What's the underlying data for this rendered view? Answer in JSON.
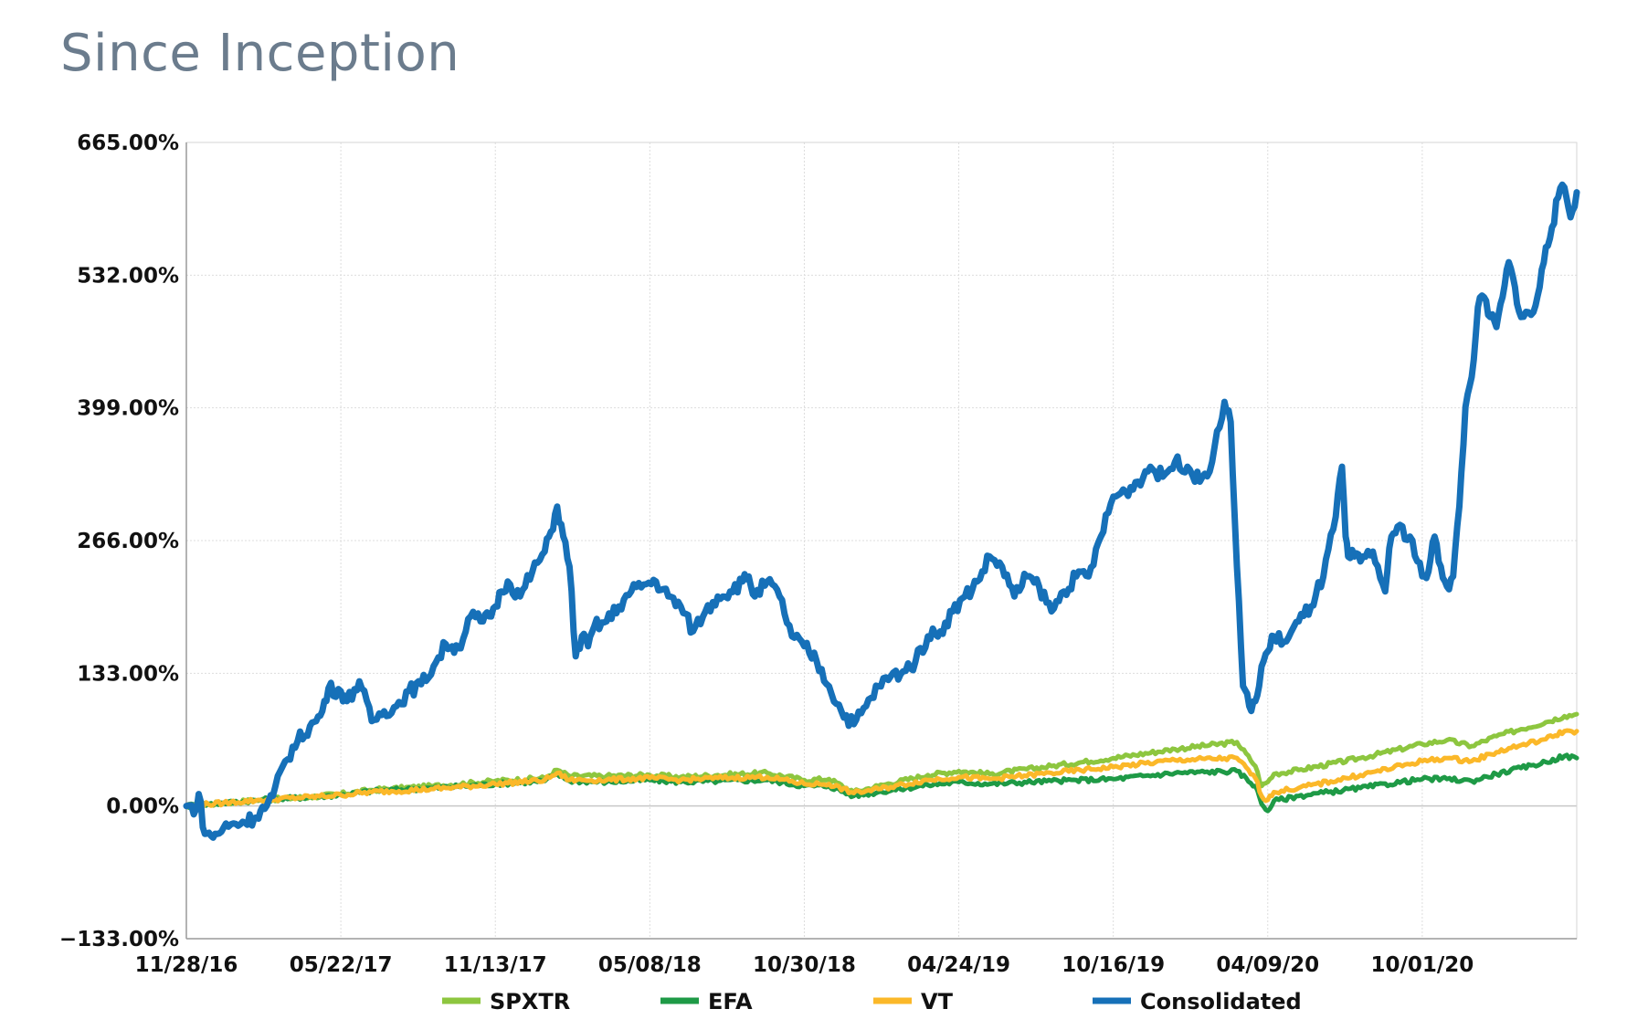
{
  "page": {
    "title": "Since Inception"
  },
  "chart_data": {
    "type": "line",
    "title": "Since Inception",
    "xlabel": "",
    "ylabel": "",
    "ylim": [
      -133,
      665
    ],
    "yticks": [
      -133,
      0,
      133,
      266,
      399,
      532,
      665
    ],
    "ytick_labels": [
      "−133.00%",
      "0.00%",
      "133.00%",
      "266.00%",
      "399.00%",
      "532.00%",
      "665.00%"
    ],
    "xtick_labels": [
      "11/28/16",
      "05/22/17",
      "11/13/17",
      "05/08/18",
      "10/30/18",
      "04/24/19",
      "10/16/19",
      "04/09/20",
      "10/01/20"
    ],
    "x_domain_labels": "Trading-day index from 11/28/16 (index 0) to ~04/2021 (index 1125); ticks every 125 points",
    "xlim": [
      0,
      1125
    ],
    "xtick_positions": [
      0,
      125,
      250,
      375,
      500,
      625,
      750,
      875,
      1000
    ],
    "grid": true,
    "legend_position": "bottom",
    "series": [
      {
        "name": "SPXTR",
        "color": "#8dc63f",
        "x": [
          0,
          30,
          60,
          100,
          125,
          150,
          200,
          250,
          290,
          300,
          310,
          340,
          375,
          400,
          430,
          470,
          500,
          520,
          540,
          560,
          600,
          625,
          650,
          700,
          750,
          800,
          850,
          865,
          870,
          875,
          880,
          900,
          950,
          1000,
          1020,
          1040,
          1060,
          1080,
          1100,
          1115,
          1125
        ],
        "values": [
          0,
          3,
          6,
          9,
          12,
          16,
          20,
          25,
          28,
          36,
          30,
          30,
          31,
          29,
          31,
          33,
          26,
          27,
          14,
          20,
          31,
          35,
          32,
          40,
          48,
          57,
          64,
          40,
          20,
          24,
          32,
          36,
          48,
          62,
          66,
          60,
          70,
          77,
          84,
          90,
          92
        ]
      },
      {
        "name": "EFA",
        "color": "#1e9a46",
        "x": [
          0,
          30,
          60,
          100,
          125,
          150,
          200,
          250,
          290,
          300,
          310,
          340,
          375,
          400,
          430,
          470,
          500,
          520,
          540,
          560,
          600,
          625,
          650,
          700,
          750,
          800,
          850,
          865,
          870,
          875,
          880,
          900,
          950,
          1000,
          1020,
          1040,
          1060,
          1080,
          1100,
          1115,
          1125
        ],
        "values": [
          0,
          3,
          6,
          9,
          11,
          15,
          18,
          22,
          25,
          32,
          25,
          24,
          26,
          24,
          25,
          26,
          20,
          20,
          10,
          14,
          21,
          24,
          22,
          25,
          27,
          33,
          35,
          20,
          2,
          -5,
          5,
          10,
          18,
          27,
          27,
          25,
          32,
          38,
          44,
          50,
          48
        ]
      },
      {
        "name": "VT",
        "color": "#fbb829",
        "x": [
          0,
          30,
          60,
          100,
          125,
          150,
          200,
          250,
          290,
          300,
          310,
          340,
          375,
          400,
          430,
          470,
          500,
          520,
          540,
          560,
          600,
          625,
          650,
          700,
          750,
          800,
          850,
          865,
          870,
          875,
          880,
          900,
          950,
          1000,
          1020,
          1040,
          1060,
          1080,
          1100,
          1115,
          1125
        ],
        "values": [
          0,
          3,
          6,
          9,
          11,
          14,
          17,
          22,
          26,
          33,
          26,
          26,
          28,
          26,
          28,
          29,
          22,
          22,
          13,
          17,
          26,
          29,
          27,
          33,
          39,
          46,
          48,
          28,
          10,
          6,
          14,
          18,
          31,
          45,
          48,
          45,
          54,
          61,
          67,
          75,
          75
        ]
      },
      {
        "name": "Consolidated",
        "color": "#1670b8",
        "x": [
          0,
          8,
          10,
          15,
          20,
          25,
          30,
          40,
          55,
          60,
          65,
          70,
          80,
          90,
          100,
          105,
          110,
          115,
          125,
          130,
          140,
          150,
          160,
          170,
          180,
          190,
          200,
          210,
          215,
          220,
          230,
          240,
          245,
          250,
          255,
          260,
          270,
          280,
          290,
          295,
          300,
          305,
          310,
          315,
          320,
          325,
          330,
          340,
          350,
          360,
          370,
          380,
          390,
          400,
          410,
          420,
          430,
          440,
          450,
          455,
          460,
          470,
          480,
          490,
          500,
          510,
          520,
          530,
          540,
          550,
          560,
          570,
          580,
          590,
          600,
          610,
          620,
          630,
          640,
          650,
          660,
          670,
          680,
          690,
          700,
          710,
          720,
          730,
          740,
          750,
          760,
          770,
          780,
          790,
          800,
          810,
          820,
          830,
          840,
          845,
          850,
          855,
          860,
          865,
          868,
          870,
          875,
          880,
          890,
          900,
          910,
          920,
          930,
          935,
          938,
          940,
          945,
          950,
          960,
          970,
          975,
          980,
          990,
          1000,
          1005,
          1010,
          1015,
          1020,
          1025,
          1030,
          1035,
          1040,
          1045,
          1050,
          1055,
          1060,
          1065,
          1070,
          1075,
          1080,
          1090,
          1095,
          1100,
          1105,
          1110,
          1115,
          1120,
          1125
        ],
        "values": [
          0,
          -3,
          12,
          -28,
          -30,
          -28,
          -22,
          -18,
          -12,
          -5,
          0,
          10,
          45,
          65,
          80,
          85,
          95,
          118,
          115,
          105,
          125,
          85,
          95,
          100,
          115,
          122,
          140,
          162,
          160,
          158,
          190,
          185,
          190,
          200,
          215,
          225,
          210,
          235,
          255,
          275,
          300,
          270,
          240,
          150,
          170,
          160,
          180,
          185,
          200,
          215,
          222,
          225,
          210,
          200,
          175,
          195,
          210,
          215,
          225,
          230,
          210,
          225,
          210,
          170,
          160,
          145,
          120,
          95,
          82,
          100,
          120,
          130,
          135,
          145,
          170,
          175,
          195,
          210,
          225,
          250,
          240,
          210,
          230,
          220,
          195,
          215,
          230,
          230,
          270,
          310,
          315,
          325,
          340,
          330,
          345,
          340,
          325,
          345,
          405,
          385,
          240,
          120,
          100,
          105,
          120,
          140,
          155,
          170,
          165,
          185,
          200,
          230,
          290,
          340,
          270,
          250,
          250,
          245,
          255,
          215,
          270,
          280,
          270,
          230,
          235,
          270,
          240,
          220,
          230,
          300,
          400,
          430,
          500,
          510,
          490,
          480,
          510,
          545,
          520,
          490,
          495,
          520,
          560,
          580,
          610,
          620,
          590,
          615
        ]
      }
    ]
  }
}
